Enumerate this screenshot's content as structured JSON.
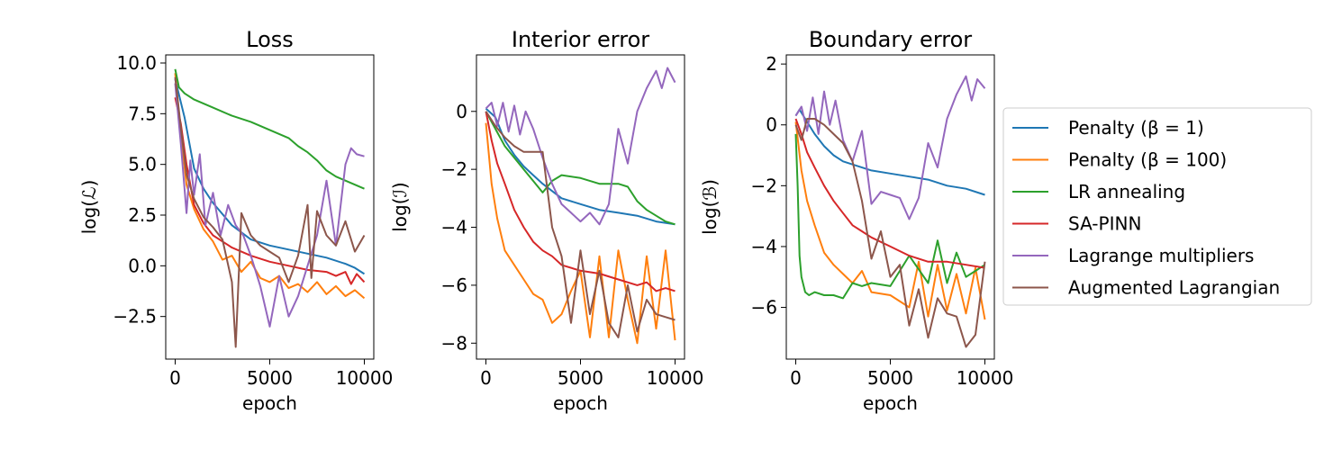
{
  "chart_data": [
    {
      "type": "line",
      "title": "Loss",
      "xlabel": "epoch",
      "ylabel": "log(ℒ)",
      "xlim": [
        -500,
        10500
      ],
      "ylim": [
        -4.6,
        10.4
      ],
      "xticks": [
        0,
        5000,
        10000
      ],
      "xtick_labels": [
        "0",
        "5000",
        "10000"
      ],
      "yticks": [
        -2.5,
        0.0,
        2.5,
        5.0,
        7.5,
        10.0
      ],
      "ytick_labels": [
        "−2.5",
        "0.0",
        "2.5",
        "5.0",
        "7.5",
        "10.0"
      ],
      "grid": false,
      "series": [
        {
          "name": "Penalty (β = 1)",
          "x": [
            0,
            500,
            1000,
            1500,
            2000,
            3000,
            4000,
            5000,
            6000,
            7000,
            8000,
            9000,
            9500,
            10000
          ],
          "y": [
            9.2,
            7.3,
            4.8,
            3.8,
            3.1,
            2.0,
            1.3,
            1.0,
            0.8,
            0.6,
            0.4,
            0.1,
            -0.1,
            -0.4
          ]
        },
        {
          "name": "Penalty (β = 100)",
          "x": [
            0,
            300,
            600,
            1000,
            1500,
            2000,
            2500,
            3000,
            3500,
            4000,
            4500,
            5000,
            5500,
            6000,
            6500,
            7000,
            7500,
            8000,
            8500,
            9000,
            9500,
            10000
          ],
          "y": [
            9.5,
            6.5,
            4.0,
            2.8,
            1.8,
            1.2,
            0.3,
            0.5,
            -0.3,
            0.2,
            -0.6,
            -0.8,
            -0.5,
            -1.1,
            -0.9,
            -1.3,
            -0.8,
            -1.4,
            -1.0,
            -1.5,
            -1.2,
            -1.6
          ]
        },
        {
          "name": "LR annealing",
          "x": [
            0,
            200,
            500,
            1000,
            2000,
            3000,
            4000,
            5000,
            6000,
            6500,
            7000,
            7500,
            8000,
            8500,
            9000,
            9500,
            10000
          ],
          "y": [
            9.7,
            8.8,
            8.5,
            8.2,
            7.8,
            7.4,
            7.1,
            6.7,
            6.3,
            5.9,
            5.6,
            5.2,
            4.7,
            4.4,
            4.2,
            4.0,
            3.8
          ]
        },
        {
          "name": "SA-PINN",
          "x": [
            0,
            300,
            600,
            1000,
            1500,
            2000,
            2500,
            3000,
            3500,
            4000,
            5000,
            6000,
            7000,
            8000,
            8500,
            9000,
            9300,
            9600,
            10000
          ],
          "y": [
            8.3,
            7.0,
            5.0,
            3.0,
            2.1,
            1.5,
            1.2,
            0.9,
            0.7,
            0.5,
            0.2,
            0.0,
            -0.2,
            -0.3,
            -0.5,
            -0.3,
            -0.9,
            -0.4,
            -0.8
          ]
        },
        {
          "name": "Lagrange multipliers",
          "x": [
            0,
            300,
            600,
            800,
            1000,
            1300,
            1600,
            2000,
            2400,
            2800,
            3200,
            3600,
            4000,
            4500,
            5000,
            5500,
            6000,
            6500,
            7000,
            7500,
            8000,
            8500,
            9000,
            9300,
            9600,
            10000
          ],
          "y": [
            9.0,
            6.0,
            2.6,
            5.2,
            3.5,
            5.5,
            2.0,
            3.6,
            1.5,
            3.0,
            2.0,
            1.5,
            0.5,
            -1.0,
            -3.0,
            -0.5,
            -2.5,
            -1.5,
            0.0,
            1.5,
            4.2,
            1.0,
            5.0,
            5.8,
            5.5,
            5.4
          ]
        },
        {
          "name": "Augmented Lagrangian",
          "x": [
            0,
            300,
            600,
            1000,
            1500,
            2000,
            2500,
            3000,
            3200,
            3500,
            4000,
            4500,
            5000,
            5500,
            6000,
            6500,
            7000,
            7200,
            7500,
            8000,
            8500,
            9000,
            9500,
            10000
          ],
          "y": [
            9.3,
            6.8,
            4.5,
            3.3,
            2.4,
            1.9,
            1.3,
            -0.8,
            -4.0,
            2.6,
            1.5,
            1.0,
            0.7,
            0.4,
            -0.8,
            0.5,
            3.0,
            -0.6,
            2.7,
            1.5,
            1.0,
            2.2,
            0.7,
            1.5
          ]
        }
      ]
    },
    {
      "type": "line",
      "title": "Interior error",
      "xlabel": "epoch",
      "ylabel": "log(ℐ)",
      "xlim": [
        -500,
        10500
      ],
      "ylim": [
        -8.55,
        1.95
      ],
      "xticks": [
        0,
        5000,
        10000
      ],
      "xtick_labels": [
        "0",
        "5000",
        "10000"
      ],
      "yticks": [
        -8,
        -6,
        -4,
        -2,
        0
      ],
      "ytick_labels": [
        "−8",
        "−6",
        "−4",
        "−2",
        "0"
      ],
      "grid": false,
      "series": [
        {
          "name": "Penalty (β = 1)",
          "x": [
            0,
            500,
            1000,
            1500,
            2000,
            2500,
            3000,
            4000,
            5000,
            6000,
            7000,
            8000,
            9000,
            10000
          ],
          "y": [
            0.1,
            -0.2,
            -1.0,
            -1.5,
            -1.9,
            -2.2,
            -2.5,
            -3.0,
            -3.2,
            -3.4,
            -3.5,
            -3.6,
            -3.8,
            -3.9
          ]
        },
        {
          "name": "Penalty (β = 100)",
          "x": [
            0,
            300,
            600,
            1000,
            1500,
            2000,
            2500,
            3000,
            3500,
            4000,
            4500,
            5000,
            5500,
            6000,
            6500,
            7000,
            7500,
            8000,
            8500,
            9000,
            9500,
            10000
          ],
          "y": [
            -0.4,
            -2.5,
            -3.7,
            -4.8,
            -5.3,
            -5.8,
            -6.3,
            -6.5,
            -7.3,
            -7.0,
            -6.2,
            -5.5,
            -7.8,
            -5.0,
            -7.8,
            -4.8,
            -6.5,
            -8.0,
            -5.0,
            -7.5,
            -4.8,
            -7.9
          ]
        },
        {
          "name": "LR annealing",
          "x": [
            0,
            500,
            1000,
            1500,
            2000,
            2500,
            3000,
            3500,
            4000,
            5000,
            6000,
            7000,
            7500,
            8000,
            8500,
            9000,
            9500,
            10000
          ],
          "y": [
            0.0,
            -0.6,
            -1.2,
            -1.6,
            -2.0,
            -2.4,
            -2.8,
            -2.4,
            -2.2,
            -2.3,
            -2.5,
            -2.5,
            -2.6,
            -3.1,
            -3.4,
            -3.6,
            -3.8,
            -3.9
          ]
        },
        {
          "name": "SA-PINN",
          "x": [
            0,
            300,
            600,
            1000,
            1500,
            2000,
            2500,
            3000,
            3500,
            4000,
            5000,
            6000,
            7000,
            8000,
            8500,
            9000,
            9500,
            10000
          ],
          "y": [
            0.0,
            -1.0,
            -1.8,
            -2.5,
            -3.4,
            -4.0,
            -4.5,
            -4.8,
            -5.0,
            -5.3,
            -5.5,
            -5.6,
            -5.8,
            -6.0,
            -5.9,
            -6.2,
            -6.1,
            -6.2
          ]
        },
        {
          "name": "Lagrange multipliers",
          "x": [
            0,
            300,
            600,
            900,
            1200,
            1500,
            1800,
            2100,
            2500,
            3000,
            3500,
            4000,
            4500,
            5000,
            5500,
            6000,
            6500,
            7000,
            7500,
            8000,
            8500,
            9000,
            9300,
            9600,
            10000
          ],
          "y": [
            0.1,
            0.3,
            -0.5,
            0.3,
            -0.7,
            0.2,
            -0.8,
            0.0,
            -0.6,
            -1.6,
            -2.5,
            -3.2,
            -3.5,
            -3.8,
            -3.5,
            -3.9,
            -3.2,
            -0.6,
            -1.8,
            0.0,
            0.8,
            1.4,
            0.8,
            1.5,
            1.0
          ]
        },
        {
          "name": "Augmented Lagrangian",
          "x": [
            0,
            500,
            1000,
            1500,
            2000,
            3000,
            3500,
            4000,
            4500,
            5000,
            5500,
            6000,
            6500,
            7000,
            7500,
            8000,
            8500,
            9000,
            9500,
            10000
          ],
          "y": [
            0.0,
            -0.5,
            -0.9,
            -1.2,
            -1.4,
            -1.4,
            -4.0,
            -5.0,
            -7.3,
            -4.8,
            -7.0,
            -5.5,
            -7.3,
            -7.8,
            -6.0,
            -7.6,
            -6.5,
            -7.0,
            -7.1,
            -7.2
          ]
        }
      ]
    },
    {
      "type": "line",
      "title": "Boundary error",
      "xlabel": "epoch",
      "ylabel": "log(ℬ)",
      "xlim": [
        -500,
        10500
      ],
      "ylim": [
        -7.7,
        2.3
      ],
      "xticks": [
        0,
        5000,
        10000
      ],
      "xtick_labels": [
        "0",
        "5000",
        "10000"
      ],
      "yticks": [
        -6,
        -4,
        -2,
        0,
        2
      ],
      "ytick_labels": [
        "−6",
        "−4",
        "−2",
        "0",
        "2"
      ],
      "grid": false,
      "series": [
        {
          "name": "Penalty (β = 1)",
          "x": [
            0,
            200,
            500,
            1000,
            1500,
            2000,
            2500,
            3000,
            4000,
            5000,
            6000,
            7000,
            8000,
            9000,
            10000
          ],
          "y": [
            0.3,
            0.5,
            0.2,
            -0.3,
            -0.7,
            -1.0,
            -1.2,
            -1.3,
            -1.5,
            -1.6,
            -1.7,
            -1.8,
            -2.0,
            -2.1,
            -2.3
          ]
        },
        {
          "name": "Penalty (β = 100)",
          "x": [
            0,
            300,
            600,
            1000,
            1500,
            2000,
            2500,
            3000,
            3500,
            4000,
            5000,
            6000,
            6500,
            7000,
            7500,
            8000,
            8500,
            9000,
            9500,
            10000
          ],
          "y": [
            0.1,
            -1.5,
            -2.5,
            -3.3,
            -4.2,
            -4.6,
            -4.9,
            -5.2,
            -4.8,
            -5.5,
            -5.6,
            -6.0,
            -4.5,
            -6.3,
            -4.6,
            -6.1,
            -4.9,
            -6.2,
            -4.7,
            -6.4
          ]
        },
        {
          "name": "LR annealing",
          "x": [
            0,
            100,
            200,
            300,
            500,
            700,
            1000,
            1500,
            2000,
            2500,
            3000,
            3500,
            4000,
            5000,
            6000,
            7000,
            7500,
            8000,
            8500,
            9000,
            9500,
            10000
          ],
          "y": [
            -0.3,
            -2.0,
            -4.3,
            -5.0,
            -5.5,
            -5.6,
            -5.5,
            -5.6,
            -5.6,
            -5.7,
            -5.2,
            -5.3,
            -5.2,
            -5.3,
            -4.3,
            -5.2,
            -3.8,
            -5.2,
            -4.2,
            -5.0,
            -4.8,
            -4.6
          ]
        },
        {
          "name": "SA-PINN",
          "x": [
            0,
            300,
            600,
            1000,
            1500,
            2000,
            2500,
            3000,
            3500,
            4000,
            5000,
            6000,
            7000,
            8000,
            9000,
            10000
          ],
          "y": [
            0.2,
            -0.3,
            -0.9,
            -1.4,
            -2.0,
            -2.5,
            -2.9,
            -3.3,
            -3.5,
            -3.7,
            -4.0,
            -4.3,
            -4.5,
            -4.5,
            -4.6,
            -4.7
          ]
        },
        {
          "name": "Lagrange multipliers",
          "x": [
            0,
            300,
            600,
            900,
            1200,
            1500,
            1800,
            2100,
            2500,
            3000,
            3500,
            4000,
            4500,
            5000,
            5500,
            6000,
            6500,
            7000,
            7500,
            8000,
            8500,
            9000,
            9300,
            9600,
            10000
          ],
          "y": [
            0.3,
            0.6,
            -0.2,
            0.9,
            -0.3,
            1.1,
            0.0,
            0.8,
            -0.5,
            -1.2,
            -0.2,
            -2.6,
            -2.2,
            -2.3,
            -2.4,
            -3.1,
            -2.4,
            -0.6,
            -1.4,
            0.2,
            1.0,
            1.6,
            0.8,
            1.5,
            1.2
          ]
        },
        {
          "name": "Augmented Lagrangian",
          "x": [
            0,
            300,
            600,
            1000,
            1500,
            2000,
            2500,
            3000,
            3500,
            4000,
            4500,
            5000,
            5500,
            6000,
            6500,
            7000,
            7500,
            8000,
            8500,
            9000,
            9500,
            10000
          ],
          "y": [
            0.0,
            -0.5,
            0.2,
            0.2,
            0.0,
            -0.3,
            -0.6,
            -1.2,
            -2.5,
            -4.4,
            -3.5,
            -5.0,
            -4.6,
            -6.6,
            -5.4,
            -7.0,
            -5.7,
            -6.2,
            -6.3,
            -7.3,
            -6.9,
            -4.5
          ]
        }
      ]
    }
  ],
  "legend": {
    "position": "right",
    "items": [
      {
        "label": "Penalty (β = 1)",
        "color": "#1f77b4"
      },
      {
        "label": "Penalty (β = 100)",
        "color": "#ff7f0e"
      },
      {
        "label": "LR annealing",
        "color": "#2ca02c"
      },
      {
        "label": "SA-PINN",
        "color": "#d62728"
      },
      {
        "label": "Lagrange multipliers",
        "color": "#9467bd"
      },
      {
        "label": "Augmented Lagrangian",
        "color": "#8c564b"
      }
    ]
  }
}
